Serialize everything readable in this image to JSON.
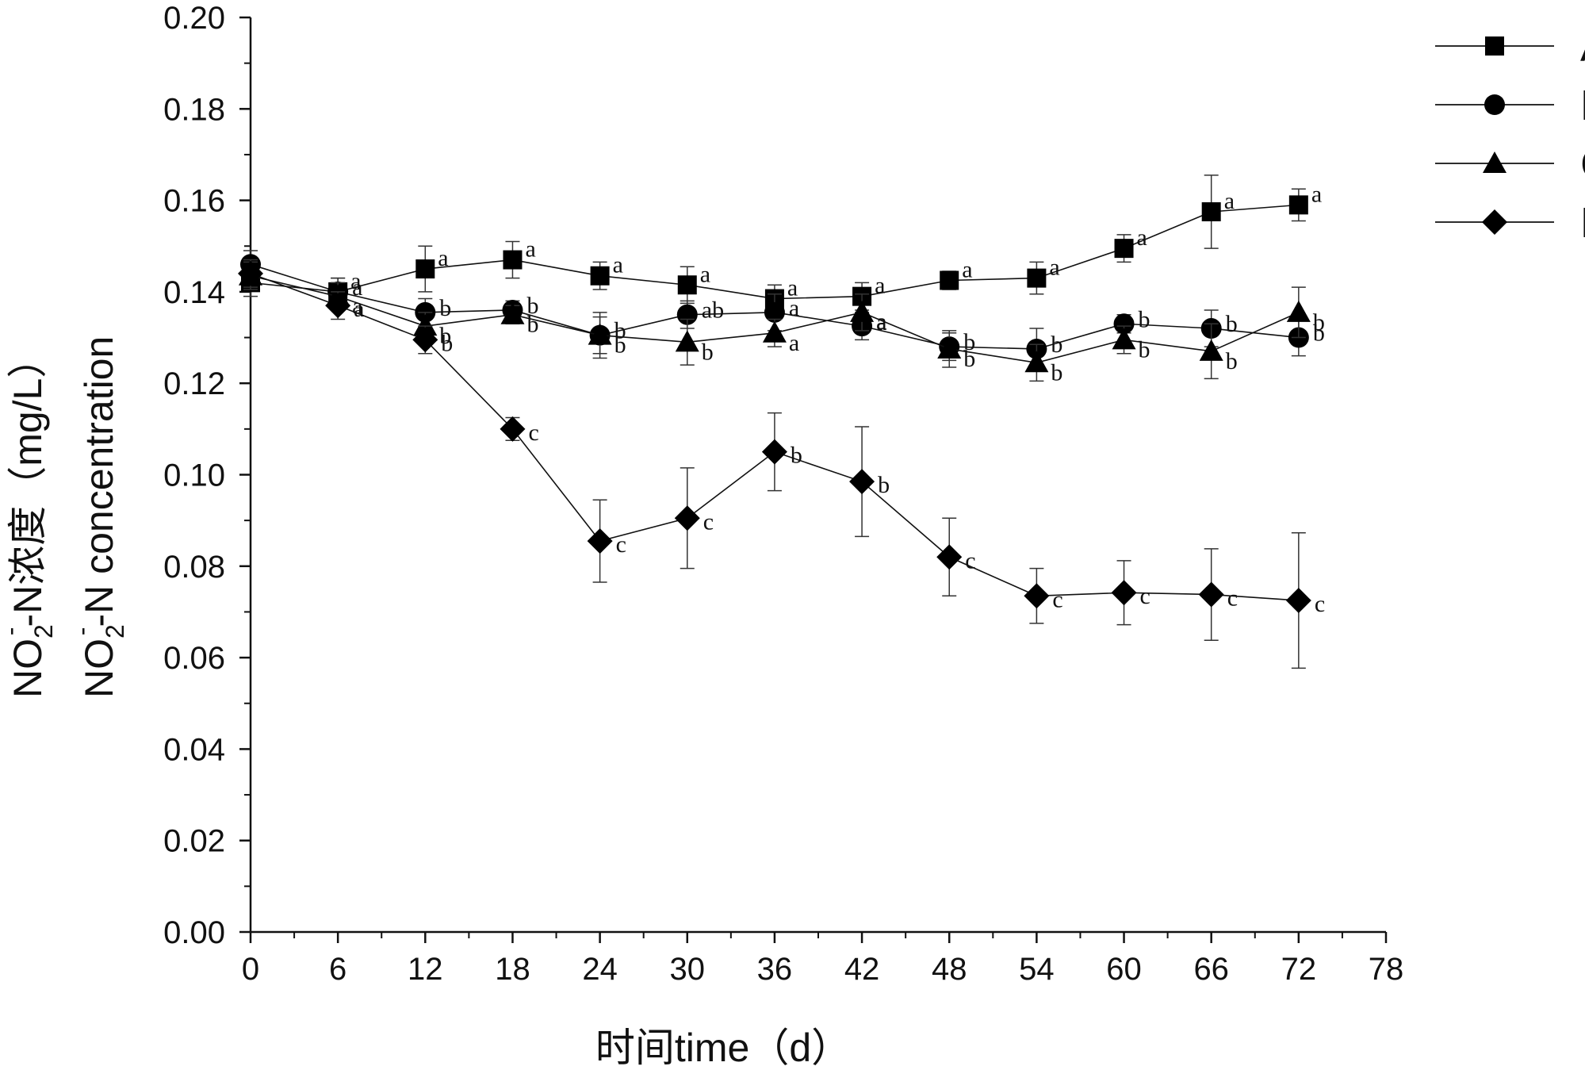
{
  "chart_data": {
    "type": "line",
    "title": "",
    "xlabel": "时间time（d）",
    "ylabel": {
      "line1_main": "NO",
      "line1_sub": "2",
      "line1_sup": "-",
      "line1_rest": "-N浓度（mg/L）",
      "line2_main": "NO",
      "line2_sub": "2",
      "line2_sup": "-",
      "line2_rest": "-N concentration"
    },
    "xlim": [
      0,
      78
    ],
    "ylim": [
      0,
      0.2
    ],
    "x_ticks": [
      "0",
      "6",
      "12",
      "18",
      "24",
      "30",
      "36",
      "42",
      "48",
      "54",
      "60",
      "66",
      "72",
      "78"
    ],
    "y_ticks": [
      "0.00",
      "0.02",
      "0.04",
      "0.06",
      "0.08",
      "0.10",
      "0.12",
      "0.14",
      "0.16",
      "0.18",
      "0.20"
    ],
    "grid": false,
    "legend_position": "top-right",
    "x": [
      0,
      6,
      12,
      18,
      24,
      30,
      36,
      42,
      48,
      54,
      60,
      66,
      72
    ],
    "series": [
      {
        "name": "A",
        "marker": "square",
        "values": [
          0.142,
          0.14,
          0.145,
          0.147,
          0.1435,
          0.1415,
          0.1385,
          0.139,
          0.1425,
          0.143,
          0.1495,
          0.1575,
          0.159
        ],
        "errors": [
          0.003,
          0.003,
          0.005,
          0.004,
          0.003,
          0.004,
          0.003,
          0.003,
          0.002,
          0.0035,
          0.003,
          0.008,
          0.0035
        ],
        "letters": [
          "",
          "a",
          "a",
          "a",
          "a",
          "a",
          "a",
          "a",
          "a",
          "a",
          "a",
          "a",
          "a"
        ]
      },
      {
        "name": "B",
        "marker": "circle",
        "values": [
          0.146,
          0.14,
          0.1355,
          0.136,
          0.1305,
          0.135,
          0.1355,
          0.1325,
          0.128,
          0.1275,
          0.133,
          0.132,
          0.13
        ],
        "errors": [
          0.003,
          0.003,
          0.003,
          0.002,
          0.005,
          0.003,
          0.004,
          0.003,
          0.003,
          0.0045,
          0.002,
          0.004,
          0.004
        ],
        "letters": [
          "",
          "a",
          "b",
          "b",
          "b",
          "ab",
          "a",
          "a",
          "b",
          "b",
          "b",
          "b",
          "b"
        ]
      },
      {
        "name": "C",
        "marker": "triangle",
        "values": [
          0.1435,
          0.139,
          0.1325,
          0.135,
          0.1305,
          0.129,
          0.131,
          0.1355,
          0.1275,
          0.1245,
          0.1295,
          0.127,
          0.1355
        ],
        "errors": [
          0.003,
          0.003,
          0.003,
          0.002,
          0.004,
          0.005,
          0.003,
          0.004,
          0.004,
          0.004,
          0.003,
          0.006,
          0.0055
        ],
        "letters": [
          "",
          "a",
          "b",
          "b",
          "b",
          "b",
          "a",
          "a",
          "b",
          "b",
          "b",
          "b",
          "b"
        ]
      },
      {
        "name": "D",
        "marker": "diamond",
        "values": [
          0.144,
          0.137,
          0.1295,
          0.11,
          0.0855,
          0.0905,
          0.105,
          0.0985,
          0.082,
          0.0735,
          0.0742,
          0.0738,
          0.0725
        ],
        "errors": [
          0.003,
          0.003,
          0.003,
          0.0025,
          0.009,
          0.011,
          0.0085,
          0.012,
          0.0085,
          0.006,
          0.007,
          0.01,
          0.0148
        ],
        "letters": [
          "",
          "a",
          "b",
          "c",
          "c",
          "c",
          "b",
          "b",
          "c",
          "c",
          "c",
          "c",
          "c"
        ]
      }
    ]
  }
}
